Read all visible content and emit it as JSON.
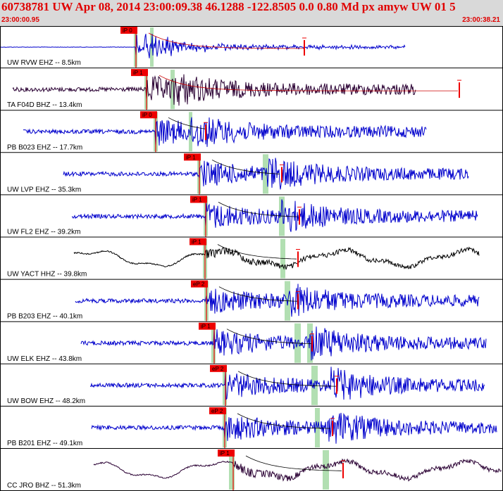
{
  "header": {
    "title": "60738781 UW Apr 08, 2014 23:00:09.38   46.1288 -122.8505  0.0 0.80 Md px amyw UW 01   5",
    "start_time": "23:00:00.95",
    "end_time": "23:00:38.21"
  },
  "colors": {
    "header_bg": "#d9d9d9",
    "header_text": "#e00000",
    "trace_blue": "#0000cc",
    "trace_black": "#000000",
    "trace_purple": "#2a0033",
    "pick_red": "#ee0000",
    "window_green": "#b2dfb2"
  },
  "traces": [
    {
      "label": "UW RVW EHZ -- 8.5km",
      "pick": "iP 0",
      "color": "trace_blue"
    },
    {
      "label": "TA F04D BHZ -- 13.4km",
      "pick": "iP 1",
      "color": "trace_purple"
    },
    {
      "label": "PB B023 EHZ -- 17.7km",
      "pick": "iP 0",
      "color": "trace_blue"
    },
    {
      "label": "UW LVP EHZ -- 35.3km",
      "pick": "iP 1",
      "color": "trace_blue"
    },
    {
      "label": "UW FL2 EHZ -- 39.2km",
      "pick": "iP 1",
      "color": "trace_blue"
    },
    {
      "label": "UW YACT HHZ -- 39.8km",
      "pick": "iP 1",
      "color": "trace_black"
    },
    {
      "label": "PB B203 EHZ -- 40.1km",
      "pick": "eP 2",
      "color": "trace_blue"
    },
    {
      "label": "UW ELK EHZ -- 43.8km",
      "pick": "iP 1",
      "color": "trace_blue"
    },
    {
      "label": "UW BOW EHZ -- 48.2km",
      "pick": "eP 2",
      "color": "trace_blue"
    },
    {
      "label": "PB B201 EHZ -- 49.1km",
      "pick": "eP 2",
      "color": "trace_blue"
    },
    {
      "label": "CC JRO BHZ -- 51.3km",
      "pick": "iP 1",
      "color": "trace_purple"
    }
  ]
}
